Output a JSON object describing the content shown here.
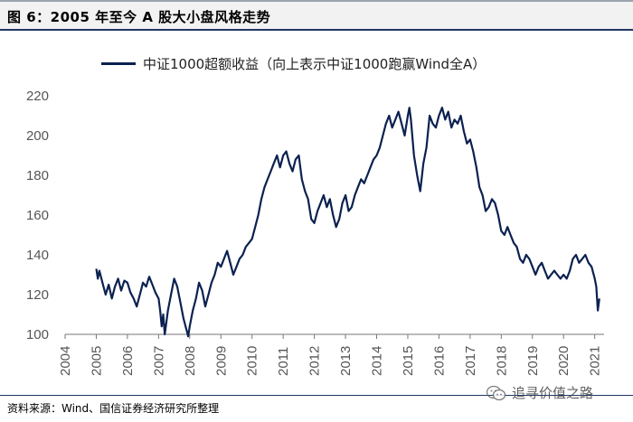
{
  "figure": {
    "title": "图 6：2005 年至今 A 股大小盘风格走势",
    "source": "资料来源：Wind、国信证券经济研究所整理",
    "watermark": "追寻价值之路"
  },
  "colors": {
    "series": "#0b2150",
    "axis": "#777777",
    "title_rule": "#1f3864"
  },
  "chart_data": {
    "type": "line",
    "title": "",
    "xlabel": "",
    "ylabel": "",
    "xlim": [
      2004,
      2021.3
    ],
    "ylim": [
      100,
      220
    ],
    "yticks": [
      100,
      120,
      140,
      160,
      180,
      200,
      220
    ],
    "xticks": [
      2004,
      2005,
      2006,
      2007,
      2008,
      2009,
      2010,
      2011,
      2012,
      2013,
      2014,
      2015,
      2016,
      2017,
      2018,
      2019,
      2020,
      2021
    ],
    "grid": false,
    "legend_position": "top",
    "series": [
      {
        "name": "中证1000超额收益（向上表示中证1000跑赢Wind全A）",
        "x": [
          2005.0,
          2005.05,
          2005.1,
          2005.2,
          2005.3,
          2005.4,
          2005.5,
          2005.6,
          2005.7,
          2005.8,
          2005.9,
          2006.0,
          2006.1,
          2006.2,
          2006.3,
          2006.4,
          2006.5,
          2006.6,
          2006.7,
          2006.8,
          2006.9,
          2007.0,
          2007.05,
          2007.1,
          2007.15,
          2007.2,
          2007.3,
          2007.4,
          2007.5,
          2007.6,
          2007.7,
          2007.8,
          2007.9,
          2007.95,
          2008.0,
          2008.1,
          2008.2,
          2008.3,
          2008.4,
          2008.5,
          2008.6,
          2008.7,
          2008.8,
          2008.9,
          2009.0,
          2009.1,
          2009.2,
          2009.3,
          2009.4,
          2009.5,
          2009.6,
          2009.7,
          2009.8,
          2009.9,
          2010.0,
          2010.1,
          2010.2,
          2010.3,
          2010.4,
          2010.5,
          2010.6,
          2010.7,
          2010.8,
          2010.9,
          2011.0,
          2011.1,
          2011.2,
          2011.3,
          2011.4,
          2011.5,
          2011.6,
          2011.7,
          2011.8,
          2011.9,
          2012.0,
          2012.1,
          2012.2,
          2012.3,
          2012.4,
          2012.5,
          2012.6,
          2012.7,
          2012.8,
          2012.9,
          2013.0,
          2013.1,
          2013.2,
          2013.3,
          2013.4,
          2013.5,
          2013.6,
          2013.7,
          2013.8,
          2013.9,
          2014.0,
          2014.1,
          2014.2,
          2014.3,
          2014.4,
          2014.5,
          2014.6,
          2014.7,
          2014.8,
          2014.9,
          2015.0,
          2015.05,
          2015.1,
          2015.2,
          2015.3,
          2015.4,
          2015.5,
          2015.6,
          2015.7,
          2015.8,
          2015.9,
          2016.0,
          2016.1,
          2016.2,
          2016.3,
          2016.4,
          2016.5,
          2016.6,
          2016.7,
          2016.8,
          2016.9,
          2017.0,
          2017.1,
          2017.2,
          2017.3,
          2017.4,
          2017.5,
          2017.6,
          2017.7,
          2017.8,
          2017.9,
          2018.0,
          2018.1,
          2018.2,
          2018.3,
          2018.4,
          2018.5,
          2018.6,
          2018.7,
          2018.8,
          2018.9,
          2019.0,
          2019.1,
          2019.2,
          2019.3,
          2019.4,
          2019.5,
          2019.6,
          2019.7,
          2019.8,
          2019.9,
          2020.0,
          2020.1,
          2020.2,
          2020.3,
          2020.4,
          2020.5,
          2020.6,
          2020.7,
          2020.8,
          2020.9,
          2021.0,
          2021.05,
          2021.1,
          2021.15
        ],
        "values": [
          133,
          128,
          132,
          126,
          120,
          125,
          118,
          124,
          128,
          122,
          127,
          126,
          121,
          118,
          114,
          120,
          126,
          124,
          129,
          125,
          121,
          118,
          112,
          104,
          110,
          100,
          112,
          120,
          128,
          124,
          116,
          108,
          102,
          99,
          104,
          112,
          118,
          126,
          122,
          114,
          120,
          126,
          130,
          136,
          134,
          138,
          142,
          136,
          130,
          134,
          138,
          140,
          144,
          146,
          148,
          154,
          160,
          168,
          174,
          178,
          182,
          186,
          190,
          184,
          190,
          192,
          186,
          182,
          188,
          190,
          178,
          172,
          168,
          158,
          156,
          162,
          166,
          170,
          164,
          168,
          160,
          154,
          158,
          166,
          170,
          162,
          164,
          170,
          174,
          178,
          176,
          180,
          184,
          188,
          190,
          194,
          200,
          206,
          210,
          204,
          208,
          212,
          206,
          200,
          210,
          214,
          208,
          190,
          180,
          172,
          186,
          194,
          210,
          206,
          204,
          210,
          214,
          208,
          212,
          204,
          208,
          206,
          210,
          202,
          196,
          198,
          192,
          184,
          174,
          170,
          162,
          164,
          168,
          166,
          160,
          152,
          150,
          154,
          150,
          146,
          144,
          138,
          136,
          140,
          138,
          134,
          130,
          134,
          136,
          132,
          128,
          130,
          132,
          130,
          128,
          130,
          128,
          132,
          138,
          140,
          136,
          138,
          140,
          136,
          134,
          128,
          124,
          112,
          118
        ]
      }
    ]
  }
}
